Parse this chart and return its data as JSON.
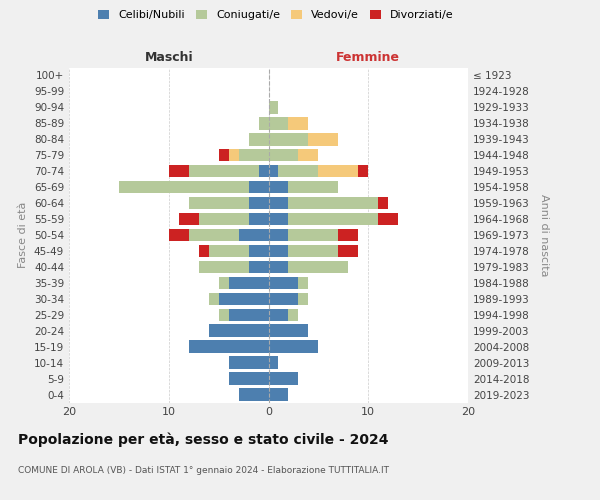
{
  "age_groups": [
    "0-4",
    "5-9",
    "10-14",
    "15-19",
    "20-24",
    "25-29",
    "30-34",
    "35-39",
    "40-44",
    "45-49",
    "50-54",
    "55-59",
    "60-64",
    "65-69",
    "70-74",
    "75-79",
    "80-84",
    "85-89",
    "90-94",
    "95-99",
    "100+"
  ],
  "birth_years": [
    "2019-2023",
    "2014-2018",
    "2009-2013",
    "2004-2008",
    "1999-2003",
    "1994-1998",
    "1989-1993",
    "1984-1988",
    "1979-1983",
    "1974-1978",
    "1969-1973",
    "1964-1968",
    "1959-1963",
    "1954-1958",
    "1949-1953",
    "1944-1948",
    "1939-1943",
    "1934-1938",
    "1929-1933",
    "1924-1928",
    "≤ 1923"
  ],
  "male": {
    "celibi": [
      3,
      4,
      4,
      8,
      6,
      4,
      5,
      4,
      2,
      2,
      3,
      2,
      2,
      2,
      1,
      0,
      0,
      0,
      0,
      0,
      0
    ],
    "coniugati": [
      0,
      0,
      0,
      0,
      0,
      1,
      1,
      1,
      5,
      4,
      5,
      5,
      6,
      13,
      7,
      3,
      2,
      1,
      0,
      0,
      0
    ],
    "vedovi": [
      0,
      0,
      0,
      0,
      0,
      0,
      0,
      0,
      0,
      0,
      0,
      0,
      0,
      0,
      0,
      1,
      0,
      0,
      0,
      0,
      0
    ],
    "divorziati": [
      0,
      0,
      0,
      0,
      0,
      0,
      0,
      0,
      0,
      1,
      2,
      2,
      0,
      0,
      2,
      1,
      0,
      0,
      0,
      0,
      0
    ]
  },
  "female": {
    "nubili": [
      2,
      3,
      1,
      5,
      4,
      2,
      3,
      3,
      2,
      2,
      2,
      2,
      2,
      2,
      1,
      0,
      0,
      0,
      0,
      0,
      0
    ],
    "coniugate": [
      0,
      0,
      0,
      0,
      0,
      1,
      1,
      1,
      6,
      5,
      5,
      9,
      9,
      5,
      4,
      3,
      4,
      2,
      1,
      0,
      0
    ],
    "vedove": [
      0,
      0,
      0,
      0,
      0,
      0,
      0,
      0,
      0,
      0,
      0,
      0,
      0,
      0,
      4,
      2,
      3,
      2,
      0,
      0,
      0
    ],
    "divorziate": [
      0,
      0,
      0,
      0,
      0,
      0,
      0,
      0,
      0,
      2,
      2,
      2,
      1,
      0,
      1,
      0,
      0,
      0,
      0,
      0,
      0
    ]
  },
  "colors": {
    "celibi_nubili": "#4d7faf",
    "coniugati": "#b5c99a",
    "vedovi": "#f5c97a",
    "divorziati": "#cc2222"
  },
  "xlim": 20,
  "title": "Popolazione per età, sesso e stato civile - 2024",
  "subtitle": "COMUNE DI AROLA (VB) - Dati ISTAT 1° gennaio 2024 - Elaborazione TUTTITALIA.IT",
  "xlabel_left": "Maschi",
  "xlabel_right": "Femmine",
  "ylabel": "Fasce di età",
  "ylabel_right": "Anni di nascita",
  "bg_color": "#f0f0f0",
  "plot_bg": "#ffffff"
}
